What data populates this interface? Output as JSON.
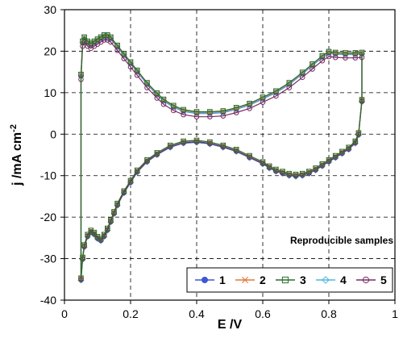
{
  "chart_data": {
    "type": "line",
    "xlabel": "E /V",
    "ylabel_main": "j /mA cm",
    "ylabel_sup": "-2",
    "xlim": [
      0,
      1
    ],
    "ylim": [
      -40,
      30
    ],
    "xticks": [
      "0",
      "0.2",
      "0.4",
      "0.6",
      "0.8",
      "1"
    ],
    "yticks": [
      "30",
      "20",
      "10",
      "0",
      "-10",
      "-20",
      "-30",
      "-40"
    ],
    "grid": true,
    "annotation": "Reproducible samples",
    "legend_position": "bottom-right",
    "anodic": {
      "x": [
        0.05,
        0.055,
        0.06,
        0.07,
        0.08,
        0.09,
        0.1,
        0.11,
        0.12,
        0.13,
        0.14,
        0.16,
        0.18,
        0.2,
        0.22,
        0.25,
        0.28,
        0.3,
        0.33,
        0.36,
        0.4,
        0.44,
        0.48,
        0.52,
        0.56,
        0.6,
        0.64,
        0.68,
        0.72,
        0.75,
        0.78,
        0.8,
        0.82,
        0.85,
        0.88,
        0.9
      ],
      "y": [
        14,
        22,
        23,
        22,
        21.5,
        22,
        22.5,
        23,
        23.5,
        23.5,
        23,
        21,
        19,
        17,
        15,
        12,
        9.5,
        8,
        6.5,
        5.5,
        5,
        5,
        5.2,
        6,
        7,
        8.5,
        10,
        12,
        14.5,
        16.5,
        18.5,
        19.5,
        19.3,
        19.2,
        19.2,
        19.3
      ]
    },
    "cathodic": {
      "x": [
        0.9,
        0.89,
        0.88,
        0.86,
        0.84,
        0.82,
        0.8,
        0.78,
        0.76,
        0.74,
        0.72,
        0.7,
        0.68,
        0.66,
        0.64,
        0.62,
        0.6,
        0.56,
        0.52,
        0.48,
        0.44,
        0.4,
        0.36,
        0.32,
        0.28,
        0.25,
        0.22,
        0.2,
        0.18,
        0.16,
        0.15,
        0.14,
        0.13,
        0.12,
        0.11,
        0.1,
        0.09,
        0.08,
        0.07,
        0.06,
        0.055,
        0.05
      ],
      "y": [
        8,
        0,
        -2,
        -3.5,
        -4.5,
        -5.5,
        -6.5,
        -7.5,
        -8.5,
        -9.3,
        -9.8,
        -10,
        -9.8,
        -9.3,
        -8.8,
        -8,
        -7,
        -5.5,
        -4,
        -3,
        -2.2,
        -1.8,
        -2,
        -3,
        -4.8,
        -6.5,
        -9,
        -11.5,
        -14,
        -17,
        -19,
        -21,
        -23,
        -24.5,
        -25.5,
        -25,
        -24,
        -23.5,
        -24.5,
        -27,
        -30,
        -35
      ]
    },
    "series": [
      {
        "name": "1",
        "color": "#3a57d6",
        "marker": "circle-filled",
        "dy": 0,
        "dyc": 0
      },
      {
        "name": "2",
        "color": "#e0783a",
        "marker": "x",
        "dy": 0.3,
        "dyc": 0.3
      },
      {
        "name": "3",
        "color": "#2b6e2b",
        "marker": "square-open",
        "dy": 0.4,
        "dyc": 0.3
      },
      {
        "name": "4",
        "color": "#4fb8d8",
        "marker": "diamond-open",
        "dy": 0.1,
        "dyc": -0.2
      },
      {
        "name": "5",
        "color": "#7a2a63",
        "marker": "circle-open",
        "dy": -0.8,
        "dyc": -0.1
      }
    ]
  }
}
